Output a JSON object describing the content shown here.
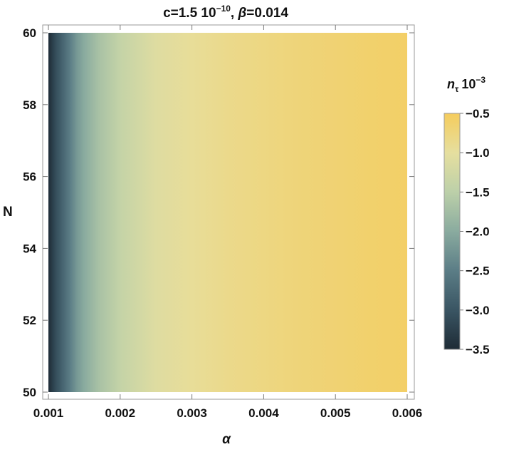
{
  "chart_data": {
    "type": "heatmap",
    "title": {
      "prefix": "c=1.5 10",
      "prefix_exponent": "−10",
      "separator": ", ",
      "greek": "β",
      "suffix": "=0.014"
    },
    "xlabel": "α",
    "ylabel": "N",
    "xlim": [
      0.001,
      0.006
    ],
    "ylim": [
      50,
      60
    ],
    "x_ticks": [
      "0.001",
      "0.002",
      "0.003",
      "0.004",
      "0.005",
      "0.006"
    ],
    "x_tick_values": [
      0.001,
      0.002,
      0.003,
      0.004,
      0.005,
      0.006
    ],
    "y_ticks": [
      "50",
      "52",
      "54",
      "56",
      "58",
      "60"
    ],
    "y_tick_values": [
      50,
      52,
      54,
      56,
      58,
      60
    ],
    "colorbar": {
      "label_symbol": "n",
      "label_subscript": "τ",
      "label_scale_base": "10",
      "label_scale_exponent": "−3",
      "range": [
        -3.5,
        -0.5
      ],
      "ticks": [
        "−0.5",
        "−1.0",
        "−1.5",
        "−2.0",
        "−2.5",
        "−3.0",
        "−3.5"
      ],
      "tick_values": [
        -0.5,
        -1.0,
        -1.5,
        -2.0,
        -2.5,
        -3.0,
        -3.5
      ]
    },
    "colormap": [
      {
        "v": -3.5,
        "color": "#1e2b36"
      },
      {
        "v": -3.0,
        "color": "#3a5563"
      },
      {
        "v": -2.5,
        "color": "#5b7d86"
      },
      {
        "v": -2.0,
        "color": "#8aab9f"
      },
      {
        "v": -1.5,
        "color": "#bcd0a9"
      },
      {
        "v": -1.0,
        "color": "#e6df9f"
      },
      {
        "v": -0.5,
        "color": "#f5cc5c"
      }
    ],
    "z_profile_along_x": {
      "x": [
        0.001,
        0.00105,
        0.0011,
        0.0012,
        0.0013,
        0.0014,
        0.0015,
        0.0017,
        0.002,
        0.0025,
        0.003,
        0.0035,
        0.004,
        0.0045,
        0.005,
        0.0055,
        0.006
      ],
      "z": [
        -3.5,
        -3.3,
        -3.1,
        -2.8,
        -2.5,
        -2.2,
        -2.0,
        -1.7,
        -1.4,
        -1.1,
        -0.95,
        -0.85,
        -0.78,
        -0.72,
        -0.67,
        -0.62,
        -0.58
      ]
    },
    "grid": false
  }
}
